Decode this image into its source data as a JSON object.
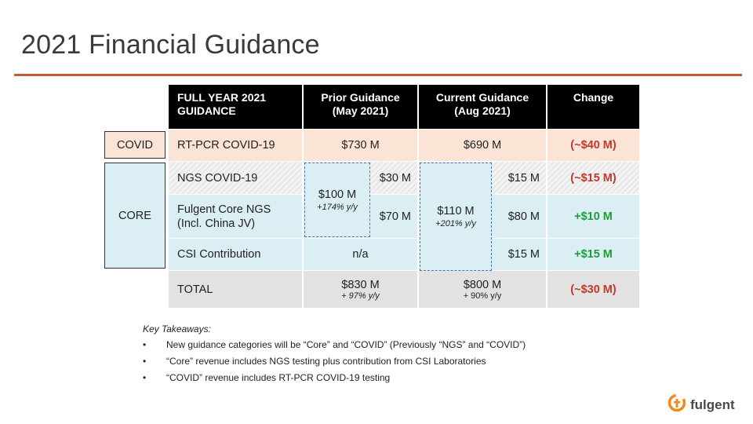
{
  "title": "2021 Financial Guidance",
  "table": {
    "headers": {
      "col1": "FULL YEAR 2021 GUIDANCE",
      "col2": "Prior Guidance (May 2021)",
      "col3": "Current Guidance (Aug 2021)",
      "col4": "Change"
    },
    "rows": {
      "rtpcr": {
        "label": "RT-PCR COVID-19",
        "prior": "$730 M",
        "current": "$690 M",
        "change": "(~$40 M)"
      },
      "ngs": {
        "label": "NGS COVID-19",
        "prior": "$30 M",
        "current": "$15 M",
        "change": "(~$15 M)"
      },
      "fulgent": {
        "label_line1": "Fulgent Core NGS",
        "label_line2": "(Incl.  China JV)",
        "prior": "$70 M",
        "current": "$80 M",
        "change": "+$10 M"
      },
      "csi": {
        "label": "CSI Contribution",
        "prior": "n/a",
        "current": "$15 M",
        "change": "+$15 M"
      },
      "total": {
        "label": "TOTAL",
        "prior": "$830 M",
        "prior_growth": "+ 97% y/y",
        "current": "$800 M",
        "current_growth": "+ 90%  y/y",
        "change": "(~$30 M)"
      }
    },
    "prior_group": {
      "value": "$100 M",
      "growth": "+174% y/y"
    },
    "current_group": {
      "value": "$110 M",
      "growth": "+201% y/y"
    }
  },
  "side_labels": {
    "covid": "COVID",
    "core": "CORE"
  },
  "takeaways": {
    "heading": "Key Takeaways:",
    "bullet_char": "•",
    "items": [
      "New guidance  categories will be “Core”  and “COVID”  (Previously  “NGS” and “COVID”)",
      "“Core”  revenue  includes NGS testing plus contribution from CSI Laboratories",
      "“COVID”  revenue  includes RT-PCR  COVID-19  testing"
    ]
  },
  "logo": {
    "text": "fulgent",
    "icon": "fulgent-logo-icon"
  },
  "colors": {
    "accent_rule": "#c55a33",
    "covid_row": "#fbe4d6",
    "core_row": "#daeef3",
    "negative": "#c0392b",
    "positive": "#1e9e3a",
    "logo_orange": "#f08a1c"
  }
}
